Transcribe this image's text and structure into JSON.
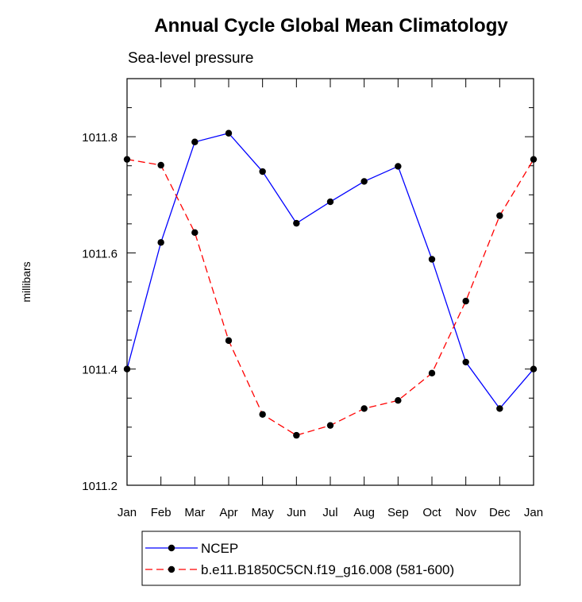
{
  "chart_data": {
    "type": "line",
    "title": "Annual Cycle Global Mean Climatology",
    "subtitle": "Sea-level pressure",
    "ylabel": "millibars",
    "xlabel": "",
    "categories": [
      "Jan",
      "Feb",
      "Mar",
      "Apr",
      "May",
      "Jun",
      "Jul",
      "Aug",
      "Sep",
      "Oct",
      "Nov",
      "Dec",
      "Jan"
    ],
    "ylim": [
      1011.2,
      1011.9
    ],
    "yticks": [
      1011.2,
      1011.4,
      1011.6,
      1011.8
    ],
    "ytick_labels": [
      "1011.2",
      "1011.4",
      "1011.6",
      "1011.8"
    ],
    "series": [
      {
        "name": "NCEP",
        "color": "#0000ff",
        "style": "solid",
        "values": [
          1011.4,
          1011.618,
          1011.791,
          1011.806,
          1011.74,
          1011.651,
          1011.688,
          1011.723,
          1011.749,
          1011.589,
          1011.412,
          1011.332,
          1011.4
        ]
      },
      {
        "name": "b.e11.B1850C5CN.f19_g16.008 (581-600)",
        "color": "#ff0000",
        "style": "dashed",
        "values": [
          1011.761,
          1011.751,
          1011.635,
          1011.449,
          1011.322,
          1011.286,
          1011.303,
          1011.332,
          1011.346,
          1011.393,
          1011.517,
          1011.664,
          1011.761
        ]
      }
    ],
    "legend_position": "bottom-left"
  }
}
